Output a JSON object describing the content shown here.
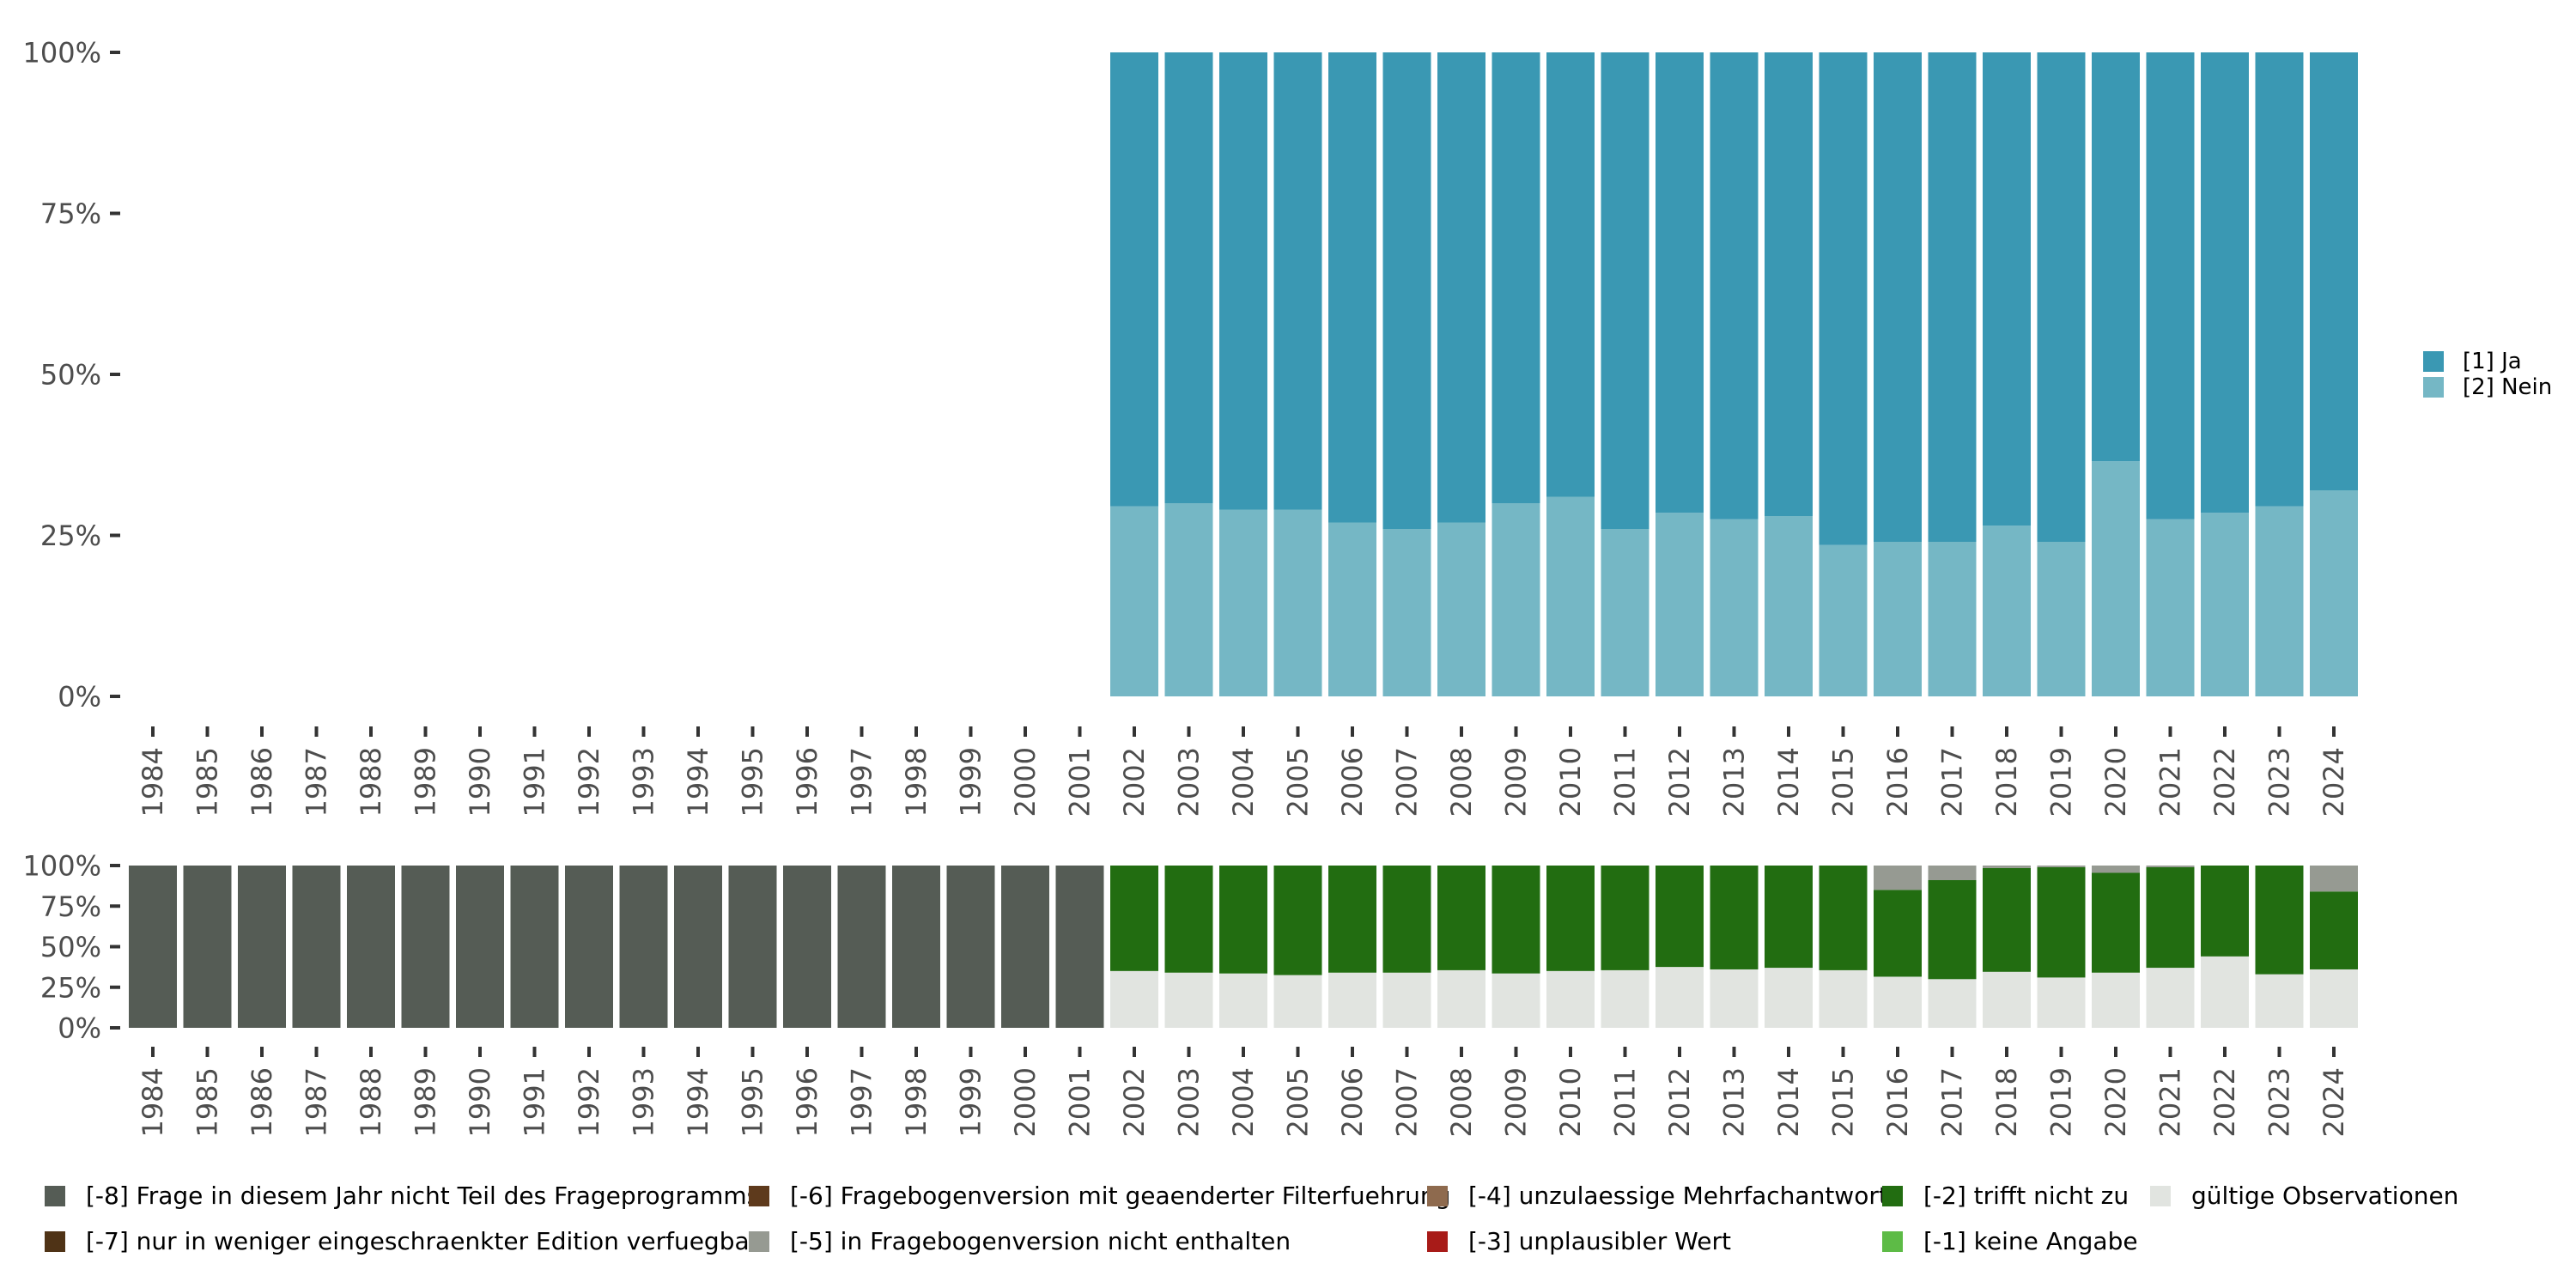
{
  "chart_data": [
    {
      "type": "bar",
      "stacked": true,
      "normalized": true,
      "categories": [
        "1984",
        "1985",
        "1986",
        "1987",
        "1988",
        "1989",
        "1990",
        "1991",
        "1992",
        "1993",
        "1994",
        "1995",
        "1996",
        "1997",
        "1998",
        "1999",
        "2000",
        "2001",
        "2002",
        "2003",
        "2004",
        "2005",
        "2006",
        "2007",
        "2008",
        "2009",
        "2010",
        "2011",
        "2012",
        "2013",
        "2014",
        "2015",
        "2016",
        "2017",
        "2018",
        "2019",
        "2020",
        "2021",
        "2022",
        "2023",
        "2024"
      ],
      "ylim": [
        0,
        100
      ],
      "yticks": [
        "0%",
        "25%",
        "50%",
        "75%",
        "100%"
      ],
      "legend_position": "right",
      "series": [
        {
          "name": "[2] Nein",
          "color": "#75B7C5",
          "values": [
            null,
            null,
            null,
            null,
            null,
            null,
            null,
            null,
            null,
            null,
            null,
            null,
            null,
            null,
            null,
            null,
            null,
            null,
            29.5,
            30,
            29,
            29,
            27,
            26,
            27,
            30,
            31,
            26,
            28.5,
            27.5,
            28,
            23.5,
            24,
            24,
            26.5,
            24,
            36.5,
            27.5,
            28.5,
            29.5,
            32
          ]
        },
        {
          "name": "[1] Ja",
          "color": "#3A98B3",
          "values": [
            null,
            null,
            null,
            null,
            null,
            null,
            null,
            null,
            null,
            null,
            null,
            null,
            null,
            null,
            null,
            null,
            null,
            null,
            70.5,
            70,
            71,
            71,
            73,
            74,
            73,
            70,
            69,
            74,
            71.5,
            72.5,
            72,
            76.5,
            76,
            76,
            73.5,
            76,
            63.5,
            72.5,
            71.5,
            70.5,
            68
          ]
        }
      ]
    },
    {
      "type": "bar",
      "stacked": true,
      "normalized": true,
      "categories": [
        "1984",
        "1985",
        "1986",
        "1987",
        "1988",
        "1989",
        "1990",
        "1991",
        "1992",
        "1993",
        "1994",
        "1995",
        "1996",
        "1997",
        "1998",
        "1999",
        "2000",
        "2001",
        "2002",
        "2003",
        "2004",
        "2005",
        "2006",
        "2007",
        "2008",
        "2009",
        "2010",
        "2011",
        "2012",
        "2013",
        "2014",
        "2015",
        "2016",
        "2017",
        "2018",
        "2019",
        "2020",
        "2021",
        "2022",
        "2023",
        "2024"
      ],
      "ylim": [
        0,
        100
      ],
      "yticks": [
        "0%",
        "25%",
        "50%",
        "75%",
        "100%"
      ],
      "legend_position": "bottom",
      "series": [
        {
          "name": "gültige Observationen",
          "color": "#E1E4E0",
          "values": [
            0,
            0,
            0,
            0,
            0,
            0,
            0,
            0,
            0,
            0,
            0,
            0,
            0,
            0,
            0,
            0,
            0,
            0,
            35,
            34,
            33.5,
            32.5,
            34,
            34,
            35.5,
            33.5,
            35,
            35.5,
            37.5,
            36,
            37,
            35.5,
            31.5,
            30,
            34.5,
            31,
            34,
            37,
            44,
            33,
            36
          ]
        },
        {
          "name": "[-1] keine Angabe",
          "color": "#5DBB46",
          "values": [
            0,
            0,
            0,
            0,
            0,
            0,
            0,
            0,
            0,
            0,
            0,
            0,
            0,
            0,
            0,
            0,
            0,
            0,
            0,
            0,
            0,
            0,
            0,
            0,
            0,
            0,
            0,
            0,
            0,
            0,
            0,
            0,
            0,
            0,
            0,
            0,
            0,
            0,
            0,
            0,
            0
          ]
        },
        {
          "name": "[-2] trifft nicht zu",
          "color": "#226D11",
          "values": [
            0,
            0,
            0,
            0,
            0,
            0,
            0,
            0,
            0,
            0,
            0,
            0,
            0,
            0,
            0,
            0,
            0,
            0,
            65,
            66,
            66.5,
            67.5,
            66,
            66,
            64.5,
            66.5,
            65,
            64.5,
            62.5,
            64,
            63,
            64.5,
            53.5,
            61,
            64,
            68,
            61.5,
            62,
            56,
            67,
            48
          ]
        },
        {
          "name": "[-3] unplausibler Wert",
          "color": "#A81B18",
          "values": [
            0,
            0,
            0,
            0,
            0,
            0,
            0,
            0,
            0,
            0,
            0,
            0,
            0,
            0,
            0,
            0,
            0,
            0,
            0,
            0,
            0,
            0,
            0,
            0,
            0,
            0,
            0,
            0,
            0,
            0,
            0,
            0,
            0,
            0,
            0,
            0,
            0,
            0,
            0,
            0,
            0
          ]
        },
        {
          "name": "[-4] unzulaessige Mehrfachantwort",
          "color": "#8E6A4E",
          "values": [
            0,
            0,
            0,
            0,
            0,
            0,
            0,
            0,
            0,
            0,
            0,
            0,
            0,
            0,
            0,
            0,
            0,
            0,
            0,
            0,
            0,
            0,
            0,
            0,
            0,
            0,
            0,
            0,
            0,
            0,
            0,
            0,
            0,
            0,
            0,
            0,
            0,
            0,
            0,
            0,
            0
          ]
        },
        {
          "name": "[-5] in Fragebogenversion nicht enthalten",
          "color": "#969A92",
          "values": [
            0,
            0,
            0,
            0,
            0,
            0,
            0,
            0,
            0,
            0,
            0,
            0,
            0,
            0,
            0,
            0,
            0,
            0,
            0,
            0,
            0,
            0,
            0,
            0,
            0,
            0,
            0,
            0,
            0,
            0,
            0,
            0,
            15,
            9,
            1.5,
            1,
            4.5,
            1,
            0,
            0,
            16
          ]
        },
        {
          "name": "[-6] Fragebogenversion mit geaenderter Filterfuehrung",
          "color": "#5E3A1C",
          "values": [
            0,
            0,
            0,
            0,
            0,
            0,
            0,
            0,
            0,
            0,
            0,
            0,
            0,
            0,
            0,
            0,
            0,
            0,
            0,
            0,
            0,
            0,
            0,
            0,
            0,
            0,
            0,
            0,
            0,
            0,
            0,
            0,
            0,
            0,
            0,
            0,
            0,
            0,
            0,
            0,
            0
          ]
        },
        {
          "name": "[-7] nur in weniger eingeschraenkter Edition verfuegbar",
          "color": "#4F3316",
          "values": [
            0,
            0,
            0,
            0,
            0,
            0,
            0,
            0,
            0,
            0,
            0,
            0,
            0,
            0,
            0,
            0,
            0,
            0,
            0,
            0,
            0,
            0,
            0,
            0,
            0,
            0,
            0,
            0,
            0,
            0,
            0,
            0,
            0,
            0,
            0,
            0,
            0,
            0,
            0,
            0,
            0
          ]
        },
        {
          "name": "[-8] Frage in diesem Jahr nicht Teil des Frageprogramms",
          "color": "#555C55",
          "values": [
            100,
            100,
            100,
            100,
            100,
            100,
            100,
            100,
            100,
            100,
            100,
            100,
            100,
            100,
            100,
            100,
            100,
            100,
            0,
            0,
            0,
            0,
            0,
            0,
            0,
            0,
            0,
            0,
            0,
            0,
            0,
            0,
            0,
            0,
            0,
            0,
            0,
            0,
            0,
            0,
            0
          ]
        }
      ]
    }
  ],
  "legend_top": [
    {
      "label": "[1] Ja",
      "color": "#3A98B3"
    },
    {
      "label": "[2] Nein",
      "color": "#75B7C5"
    }
  ],
  "legend_bottom": [
    {
      "label": "[-8] Frage in diesem Jahr nicht Teil des Frageprogramms",
      "color": "#555C55"
    },
    {
      "label": "[-7] nur in weniger eingeschraenkter Edition verfuegbar",
      "color": "#4F3316"
    },
    {
      "label": "[-6] Fragebogenversion mit geaenderter Filterfuehrung",
      "color": "#5E3A1C"
    },
    {
      "label": "[-5] in Fragebogenversion nicht enthalten",
      "color": "#969A92"
    },
    {
      "label": "[-4] unzulaessige Mehrfachantwort",
      "color": "#8E6A4E"
    },
    {
      "label": "[-3] unplausibler Wert",
      "color": "#A81B18"
    },
    {
      "label": "[-2] trifft nicht zu",
      "color": "#226D11"
    },
    {
      "label": "[-1] keine Angabe",
      "color": "#5DBB46"
    },
    {
      "label": "gültige Observationen",
      "color": "#E1E4E0"
    }
  ]
}
